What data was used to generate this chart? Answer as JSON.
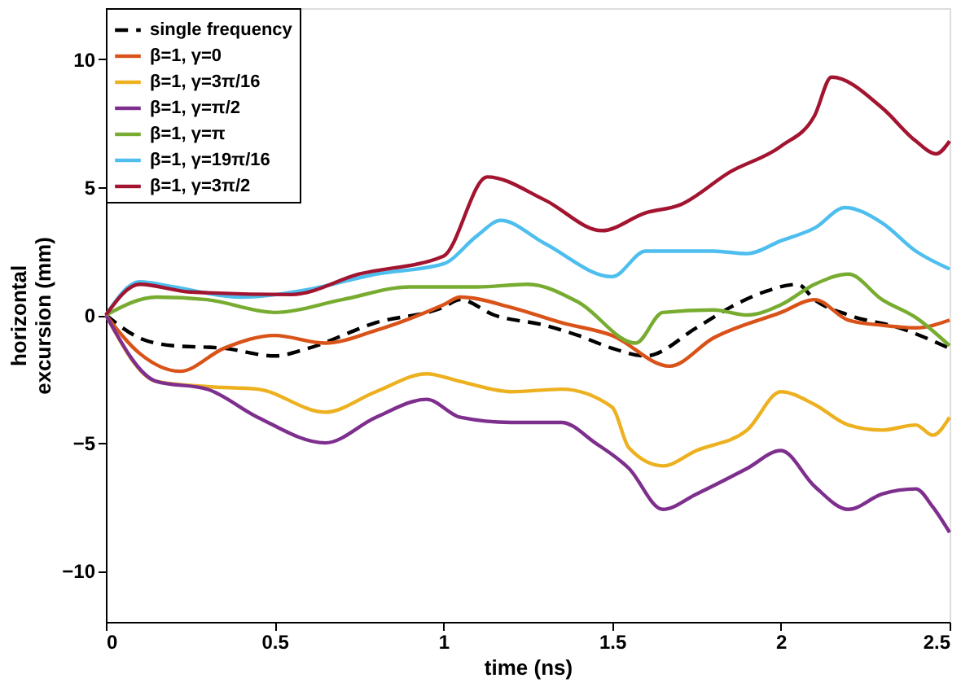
{
  "chart_data": {
    "type": "line",
    "xlabel": "time (ns)",
    "ylabel": "horizontal excursion (mm)",
    "xlim": [
      0,
      2.5
    ],
    "xticks": [
      0,
      0.5,
      1,
      1.5,
      2,
      2.5
    ],
    "ylim": [
      -12,
      12
    ],
    "yticks": [
      -10,
      -5,
      0,
      5,
      10
    ],
    "grid": false,
    "legend": "top left",
    "series": [
      {
        "name": "single frequency",
        "color": "#000000",
        "line_style": "dashed",
        "x": [
          0,
          0.1,
          0.2,
          0.35,
          0.5,
          0.6,
          0.8,
          1.0,
          1.05,
          1.15,
          1.3,
          1.4,
          1.5,
          1.6,
          1.75,
          1.85,
          1.95,
          2.05,
          2.1,
          2.2,
          2.35,
          2.5
        ],
        "values": [
          0,
          -0.9,
          -1.2,
          -1.3,
          -1.6,
          -1.3,
          -0.3,
          0.3,
          0.6,
          0.0,
          -0.4,
          -0.8,
          -1.3,
          -1.6,
          -0.5,
          0.3,
          0.9,
          1.2,
          0.6,
          0.0,
          -0.5,
          -1.3
        ]
      },
      {
        "name": "β=1, γ=0",
        "color": "#d95319",
        "line_style": "solid",
        "x": [
          0,
          0.1,
          0.22,
          0.35,
          0.5,
          0.65,
          0.8,
          1.0,
          1.05,
          1.2,
          1.35,
          1.5,
          1.67,
          1.8,
          2.0,
          2.1,
          2.2,
          2.3,
          2.4,
          2.5
        ],
        "values": [
          0,
          -1.5,
          -2.2,
          -1.3,
          -0.8,
          -1.1,
          -0.6,
          0.4,
          0.7,
          0.3,
          -0.3,
          -0.8,
          -2.0,
          -0.9,
          0.1,
          0.6,
          -0.2,
          -0.4,
          -0.5,
          -0.2
        ]
      },
      {
        "name": "β=1, γ=3π/16",
        "color": "#edb120",
        "line_style": "solid",
        "x": [
          0,
          0.15,
          0.3,
          0.45,
          0.65,
          0.8,
          0.95,
          1.05,
          1.2,
          1.35,
          1.5,
          1.55,
          1.65,
          1.75,
          1.9,
          2.0,
          2.1,
          2.2,
          2.3,
          2.4,
          2.45,
          2.5
        ],
        "values": [
          0,
          -2.6,
          -2.8,
          -2.9,
          -3.8,
          -3.0,
          -2.3,
          -2.6,
          -3.0,
          -2.9,
          -3.6,
          -5.2,
          -5.9,
          -5.3,
          -4.5,
          -3.0,
          -3.5,
          -4.3,
          -4.5,
          -4.3,
          -4.7,
          -4.0
        ]
      },
      {
        "name": "β=1, γ=π/2",
        "color": "#7e2f8e",
        "line_style": "solid",
        "x": [
          0,
          0.15,
          0.3,
          0.45,
          0.65,
          0.8,
          0.95,
          1.05,
          1.2,
          1.35,
          1.45,
          1.55,
          1.65,
          1.75,
          1.9,
          2.0,
          2.1,
          2.2,
          2.3,
          2.4,
          2.45,
          2.5
        ],
        "values": [
          0,
          -2.6,
          -2.9,
          -4.0,
          -5.0,
          -4.0,
          -3.3,
          -4.0,
          -4.2,
          -4.2,
          -5.0,
          -6.0,
          -7.6,
          -7.0,
          -6.0,
          -5.3,
          -6.7,
          -7.6,
          -7.0,
          -6.8,
          -7.5,
          -8.5
        ]
      },
      {
        "name": "β=1, γ=π",
        "color": "#77ac30",
        "line_style": "solid",
        "x": [
          0,
          0.15,
          0.3,
          0.5,
          0.7,
          0.9,
          1.1,
          1.25,
          1.4,
          1.57,
          1.65,
          1.8,
          1.9,
          2.0,
          2.1,
          2.2,
          2.3,
          2.4,
          2.5
        ],
        "values": [
          0,
          0.7,
          0.6,
          0.1,
          0.6,
          1.1,
          1.1,
          1.2,
          0.5,
          -1.1,
          0.1,
          0.2,
          0.0,
          0.4,
          1.2,
          1.6,
          0.6,
          -0.1,
          -1.2
        ]
      },
      {
        "name": "β=1, γ=19π/16",
        "color": "#4dbeee",
        "line_style": "solid",
        "x": [
          0,
          0.1,
          0.2,
          0.4,
          0.6,
          0.8,
          1.0,
          1.1,
          1.17,
          1.3,
          1.5,
          1.6,
          1.8,
          1.9,
          2.0,
          2.1,
          2.19,
          2.3,
          2.4,
          2.5
        ],
        "values": [
          0,
          1.3,
          1.1,
          0.7,
          1.0,
          1.6,
          2.0,
          3.1,
          3.7,
          2.8,
          1.5,
          2.5,
          2.5,
          2.4,
          2.9,
          3.4,
          4.2,
          3.6,
          2.5,
          1.8
        ]
      },
      {
        "name": "β=1, γ=3π/2",
        "color": "#a2142f",
        "line_style": "solid",
        "x": [
          0,
          0.1,
          0.25,
          0.55,
          0.75,
          1.0,
          1.13,
          1.3,
          1.47,
          1.6,
          1.7,
          1.85,
          2.0,
          2.1,
          2.15,
          2.3,
          2.4,
          2.46,
          2.5
        ],
        "values": [
          0,
          1.2,
          0.9,
          0.8,
          1.6,
          2.3,
          5.4,
          4.5,
          3.3,
          4.0,
          4.3,
          5.6,
          6.6,
          7.8,
          9.3,
          8.1,
          6.8,
          6.3,
          6.8
        ]
      }
    ]
  }
}
